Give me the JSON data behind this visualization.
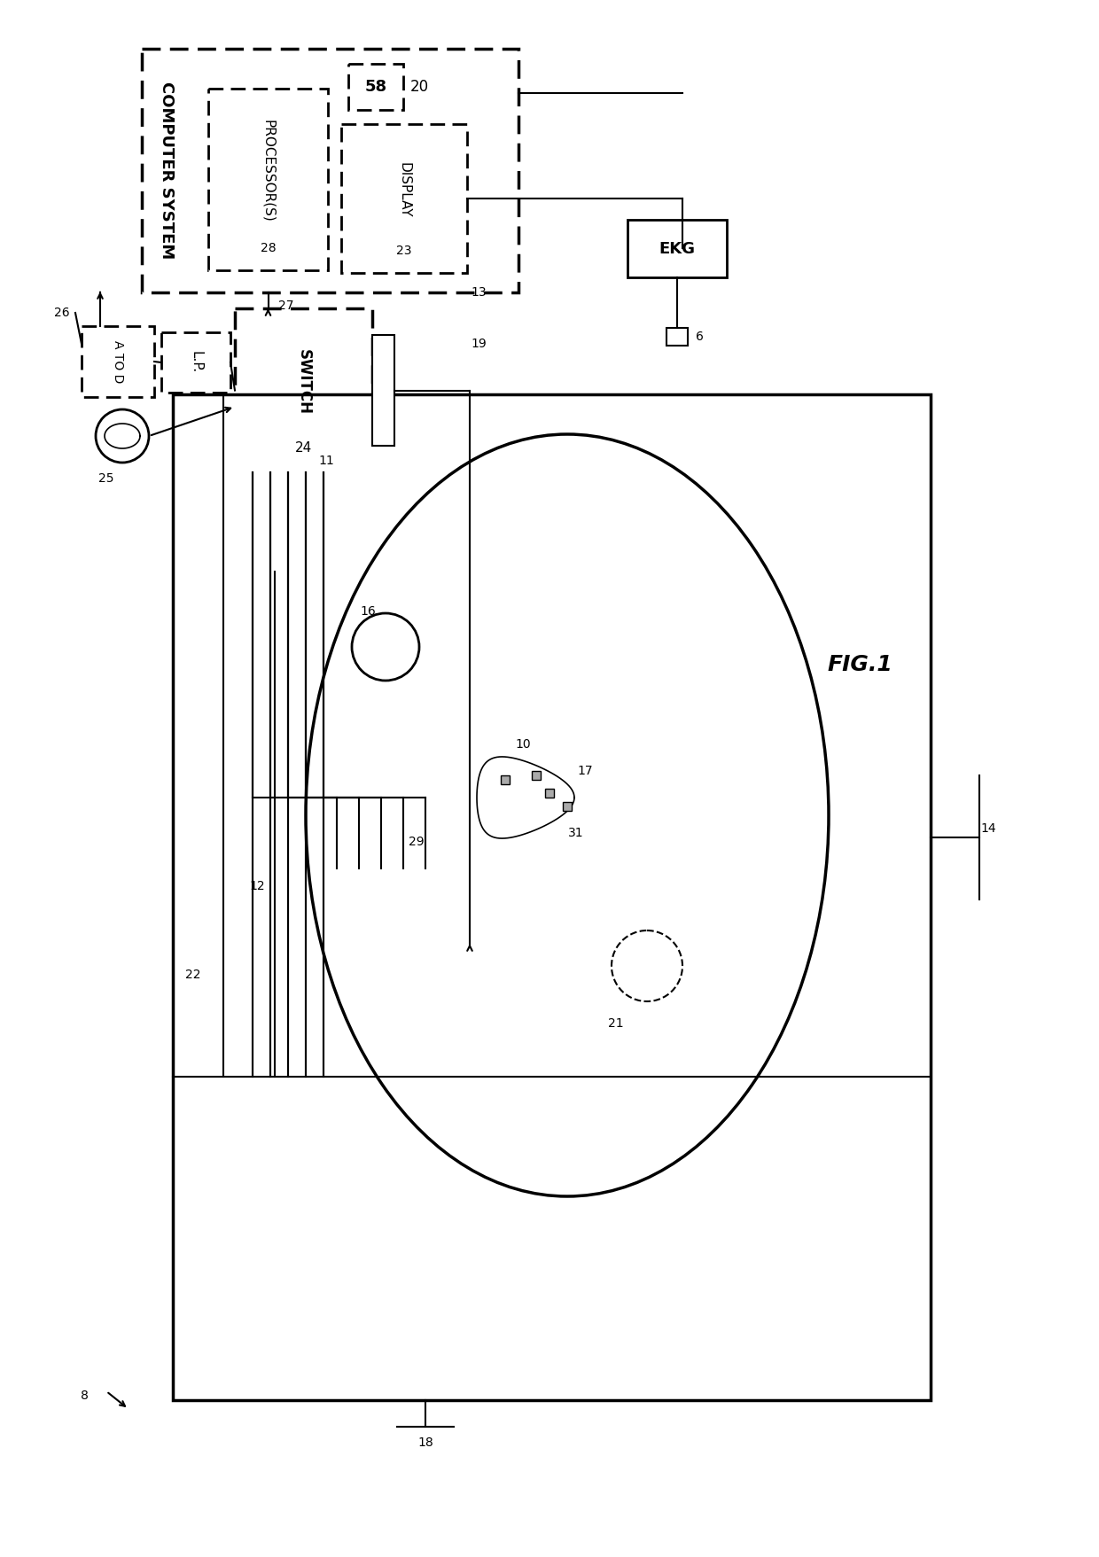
{
  "bg": "#ffffff",
  "fig_label": "FIG.1",
  "cs_label": "COMPUTER SYSTEM",
  "proc_label": "PROCESSOR(S)",
  "proc_num": "28",
  "disp_label": "DISPLAY",
  "disp_num": "23",
  "mem_num": "58",
  "cs_num": "20",
  "sw_label": "SWITCH",
  "sw_num": "24",
  "atod_label": "A TO D",
  "lp_label": "L.P.",
  "ekg_label": "EKG",
  "n6": "6",
  "n8": "8",
  "n10": "10",
  "n11": "11",
  "n12": "12",
  "n13": "13",
  "n14": "14",
  "n16": "16",
  "n17": "17",
  "n18": "18",
  "n19": "19",
  "n21": "21",
  "n22": "22",
  "n25": "25",
  "n26": "26",
  "n27": "27",
  "n29": "29",
  "n31": "31"
}
